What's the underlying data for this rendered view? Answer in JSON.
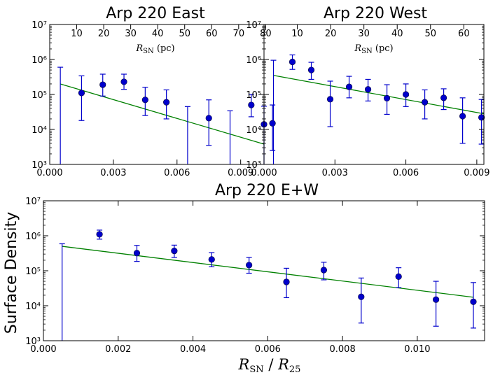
{
  "figure": {
    "ylabel": "Surface Density",
    "xlabel_main": "R",
    "xlabel_sub1": "SN",
    "xlabel_sep": " / ",
    "xlabel_sub2": "25"
  },
  "colors": {
    "points": "#0000cc",
    "errorbars": "#0000cc",
    "fit": "#008000"
  },
  "chart_data": [
    {
      "id": "east",
      "type": "scatter",
      "title": "Arp 220 East",
      "xlabel": "",
      "ylabel": "Surface Density",
      "yscale": "log",
      "xlim": [
        0.0,
        0.0101
      ],
      "ylim": [
        1000,
        10000000
      ],
      "xticks": [
        0.0,
        0.003,
        0.006,
        0.009
      ],
      "xtick_labels": [
        "0.000",
        "0.003",
        "0.006",
        "0.009"
      ],
      "yticks": [
        1000,
        10000,
        100000,
        1000000,
        10000000
      ],
      "top_axis": {
        "label": "R",
        "label_sub": "SN",
        "label_unit": " (pc)",
        "ticks": [
          10,
          20,
          30,
          40,
          50,
          60,
          70,
          80
        ],
        "labels": [
          "10",
          "20",
          "30",
          "40",
          "50",
          "60",
          "70",
          "80"
        ],
        "pc_per_unit": 7860
      },
      "series": [
        {
          "name": "data",
          "x": [
            0.0005,
            0.0015,
            0.0025,
            0.0035,
            0.0045,
            0.0055,
            0.0065,
            0.0075,
            0.0085,
            0.0095,
            0.0105
          ],
          "y": [
            null,
            110000,
            190000,
            230000,
            70000,
            60000,
            null,
            21000,
            null,
            50000,
            15000
          ],
          "yerr_low": [
            1000,
            18000,
            90000,
            140000,
            25000,
            20000,
            1000,
            3500,
            1000,
            23000,
            2500
          ],
          "yerr_high": [
            600000,
            340000,
            380000,
            380000,
            160000,
            135000,
            45000,
            70000,
            34000,
            100000,
            50000
          ]
        },
        {
          "name": "fit",
          "type": "line",
          "x": [
            0.0005,
            0.0101
          ],
          "y": [
            200000,
            3800
          ]
        }
      ],
      "extra_points": [
        {
          "x": 0.0101,
          "y": 14000,
          "yerr_low": 1000,
          "yerr_high": 46000
        }
      ]
    },
    {
      "id": "west",
      "type": "scatter",
      "title": "Arp 220 West",
      "xlabel": "",
      "ylabel": "",
      "yscale": "log",
      "xlim": [
        0.0,
        0.0093
      ],
      "ylim": [
        1000,
        10000000
      ],
      "xticks": [
        0.0,
        0.003,
        0.006,
        0.009
      ],
      "xtick_labels": [
        "0.000",
        "0.003",
        "0.006",
        "0.009"
      ],
      "yticks": [
        1000,
        10000,
        100000,
        1000000,
        10000000
      ],
      "top_axis": {
        "label": "R",
        "label_sub": "SN",
        "label_unit": " (pc)",
        "ticks": [
          10,
          20,
          30,
          40,
          50,
          60
        ],
        "labels": [
          "10",
          "20",
          "30",
          "40",
          "50",
          "60"
        ],
        "pc_per_unit": 7100
      },
      "series": [
        {
          "name": "data",
          "x": [
            0.0004,
            0.0012,
            0.002,
            0.0028,
            0.0036,
            0.0044,
            0.0052,
            0.006,
            0.0068,
            0.0076,
            0.0084,
            0.0092
          ],
          "y": [
            null,
            850000,
            500000,
            73000,
            165000,
            140000,
            78000,
            100000,
            60000,
            80000,
            24000,
            22000
          ],
          "yerr_low": [
            1000,
            520000,
            270000,
            12000,
            80000,
            65000,
            27000,
            45000,
            20000,
            37000,
            4000,
            3800
          ],
          "yerr_high": [
            950000,
            1350000,
            830000,
            240000,
            330000,
            270000,
            190000,
            200000,
            135000,
            145000,
            80000,
            72000
          ]
        },
        {
          "name": "fit",
          "type": "line",
          "x": [
            0.0004,
            0.0093
          ],
          "y": [
            350000,
            28000
          ]
        }
      ]
    },
    {
      "id": "combined",
      "type": "scatter",
      "title": "Arp 220 E+W",
      "xlabel": "R_SN / R_25",
      "ylabel": "Surface Density",
      "yscale": "log",
      "xlim": [
        0.0,
        0.0118
      ],
      "ylim": [
        1000,
        10000000
      ],
      "xticks": [
        0.0,
        0.002,
        0.004,
        0.006,
        0.008,
        0.01
      ],
      "xtick_labels": [
        "0.000",
        "0.002",
        "0.004",
        "0.006",
        "0.008",
        "0.010"
      ],
      "yticks": [
        1000,
        10000,
        100000,
        1000000,
        10000000
      ],
      "series": [
        {
          "name": "data",
          "x": [
            0.0005,
            0.0015,
            0.0025,
            0.0035,
            0.0045,
            0.0055,
            0.0065,
            0.0075,
            0.0085,
            0.0095,
            0.0105,
            0.0115
          ],
          "y": [
            null,
            1100000,
            320000,
            370000,
            210000,
            145000,
            48000,
            105000,
            18000,
            68000,
            15000,
            13000
          ],
          "yerr_low": [
            1000,
            800000,
            185000,
            240000,
            130000,
            85000,
            17000,
            55000,
            3200,
            33000,
            2600,
            2300
          ],
          "yerr_high": [
            590000,
            1450000,
            530000,
            540000,
            330000,
            240000,
            118000,
            175000,
            62000,
            122000,
            50000,
            46000
          ]
        },
        {
          "name": "fit",
          "type": "line",
          "x": [
            0.0005,
            0.0115
          ],
          "y": [
            500000,
            17500
          ]
        }
      ]
    }
  ]
}
